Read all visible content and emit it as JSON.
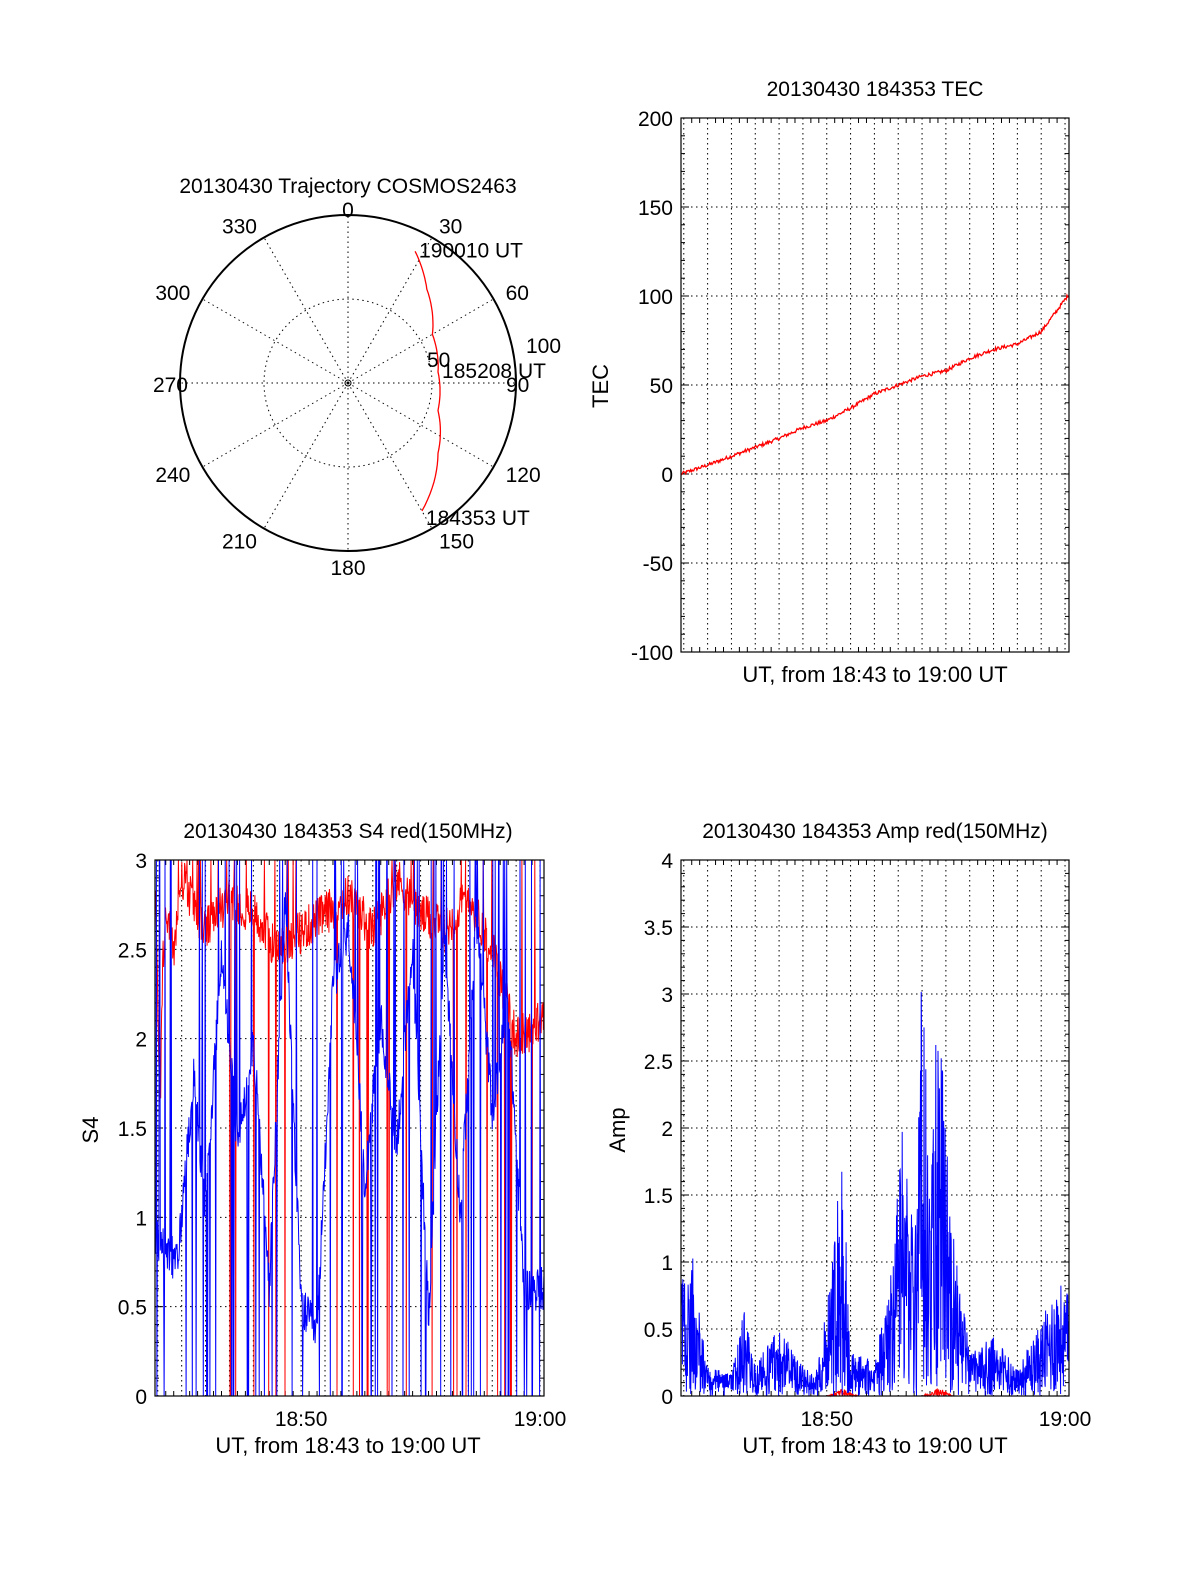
{
  "chart_data": [
    {
      "type": "polar",
      "title": "20130430 Trajectory COSMOS2463",
      "azimuth_labels": [
        "0",
        "30",
        "60",
        "90",
        "120",
        "150",
        "180",
        "210",
        "240",
        "270",
        "300",
        "330"
      ],
      "radial_ticks": [
        50,
        100
      ],
      "radial_tick_labels": [
        "50",
        "100"
      ],
      "r_max": 100,
      "grid": true,
      "series": [
        {
          "color": "#ff0000",
          "points": [
            {
              "az": 27,
              "r": 88
            },
            {
              "az": 40,
              "r": 73
            },
            {
              "az": 60,
              "r": 58
            },
            {
              "az": 83,
              "r": 54
            },
            {
              "az": 107,
              "r": 56
            },
            {
              "az": 128,
              "r": 68
            },
            {
              "az": 150,
              "r": 88
            }
          ]
        }
      ],
      "annotations": [
        {
          "text": "190010 UT",
          "az": 27,
          "r": 88
        },
        {
          "text": "185208 UT",
          "az": 83,
          "r": 54
        },
        {
          "text": "184353 UT",
          "az": 150,
          "r": 88
        }
      ]
    },
    {
      "type": "line",
      "title": "20130430 184353 TEC",
      "xlabel": "UT, from 18:43 to 19:00 UT",
      "ylabel": "TEC",
      "xlim": [
        "18:43:53",
        "19:00:10"
      ],
      "ylim": [
        -100,
        200
      ],
      "yticks": [
        "-100",
        "-50",
        "0",
        "50",
        "100",
        "150",
        "200"
      ],
      "grid": true,
      "series": [
        {
          "color": "#ff0000",
          "x": [
            "18:43:53",
            "18:45:00",
            "18:46:00",
            "18:47:00",
            "18:48:00",
            "18:49:00",
            "18:50:00",
            "18:51:00",
            "18:52:00",
            "18:53:00",
            "18:54:00",
            "18:55:00",
            "18:56:00",
            "18:57:00",
            "18:58:00",
            "18:59:00",
            "19:00:10"
          ],
          "values": [
            0,
            5,
            10,
            15,
            20,
            26,
            30,
            37,
            45,
            50,
            55,
            58,
            65,
            70,
            73,
            80,
            101
          ]
        }
      ]
    },
    {
      "type": "line",
      "title": "20130430 184353 S4 red(150MHz)",
      "xlabel": "UT, from 18:43 to 19:00 UT",
      "ylabel": "S4",
      "xlim": [
        "18:43:53",
        "19:00:10"
      ],
      "ylim": [
        0,
        3
      ],
      "xticks": [
        "18:50",
        "19:00"
      ],
      "yticks": [
        "0",
        "0.5",
        "1",
        "1.5",
        "2",
        "2.5",
        "3"
      ],
      "grid": true,
      "series": [
        {
          "color": "#ff0000",
          "x": [
            "18:43:53",
            "18:44:06",
            "18:44:12",
            "18:44:20",
            "18:44:40",
            "18:45:00",
            "18:46:00",
            "18:47:00",
            "18:48:00",
            "18:49:00",
            "18:50:00",
            "18:51:00",
            "18:52:00",
            "18:53:00",
            "18:54:00",
            "18:55:00",
            "18:56:00",
            "18:57:00",
            "18:58:00",
            "18:59:00",
            "19:00:10"
          ],
          "values": [
            2.9,
            1.6,
            2.4,
            2.7,
            2.5,
            2.9,
            2.6,
            2.8,
            2.7,
            2.5,
            2.6,
            2.7,
            2.8,
            2.6,
            2.9,
            2.7,
            2.6,
            2.8,
            2.5,
            2.0,
            2.1
          ]
        },
        {
          "color": "#0000ff",
          "x": [
            "18:43:53",
            "18:44:20",
            "18:44:50",
            "18:45:30",
            "18:46:00",
            "18:46:40",
            "18:47:20",
            "18:48:00",
            "18:48:40",
            "18:49:20",
            "18:50:00",
            "18:50:40",
            "18:51:20",
            "18:52:00",
            "18:52:40",
            "18:53:20",
            "18:54:00",
            "18:54:40",
            "18:55:20",
            "18:56:00",
            "18:56:40",
            "18:57:20",
            "18:58:00",
            "18:58:40",
            "18:59:20",
            "19:00:10"
          ],
          "values": [
            0.9,
            0.8,
            0.75,
            1.8,
            1.05,
            2.5,
            1.4,
            2.0,
            0.6,
            2.8,
            0.5,
            0.35,
            2.3,
            2.6,
            1.2,
            2.1,
            1.4,
            2.5,
            0.45,
            2.6,
            1.0,
            2.7,
            1.6,
            2.2,
            0.6,
            0.6
          ]
        }
      ]
    },
    {
      "type": "line",
      "title": "20130430 184353 Amp red(150MHz)",
      "xlabel": "UT, from 18:43 to 19:00 UT",
      "ylabel": "Amp",
      "xlim": [
        "18:43:53",
        "19:00:10"
      ],
      "ylim": [
        0,
        4
      ],
      "xticks": [
        "18:50",
        "19:00"
      ],
      "yticks": [
        "0",
        "0.5",
        "1",
        "1.5",
        "2",
        "2.5",
        "3",
        "3.5",
        "4"
      ],
      "grid": true,
      "series": [
        {
          "color": "#ff0000",
          "x": [
            "18:43:53",
            "18:50:00",
            "18:50:40",
            "18:51:20",
            "18:54:00",
            "18:54:40",
            "18:55:20",
            "19:00:10"
          ],
          "values": [
            0.0,
            0.0,
            0.05,
            0.0,
            0.0,
            0.06,
            0.0,
            0.0
          ]
        },
        {
          "color": "#0000ff",
          "x": [
            "18:43:53",
            "18:44:20",
            "18:45:00",
            "18:46:00",
            "18:46:30",
            "18:47:00",
            "18:48:00",
            "18:49:00",
            "18:49:30",
            "18:50:00",
            "18:50:40",
            "18:51:00",
            "18:52:00",
            "18:52:40",
            "18:53:10",
            "18:53:40",
            "18:54:00",
            "18:54:20",
            "18:54:40",
            "18:55:20",
            "18:56:00",
            "18:57:00",
            "18:58:00",
            "18:59:00",
            "18:59:40",
            "19:00:10"
          ],
          "values": [
            0.9,
            1.0,
            0.2,
            0.15,
            0.6,
            0.2,
            0.5,
            0.2,
            0.15,
            0.6,
            1.7,
            0.3,
            0.25,
            0.8,
            1.8,
            1.2,
            3.05,
            1.3,
            2.8,
            1.1,
            0.3,
            0.4,
            0.2,
            0.5,
            0.8,
            0.7
          ]
        }
      ]
    }
  ]
}
